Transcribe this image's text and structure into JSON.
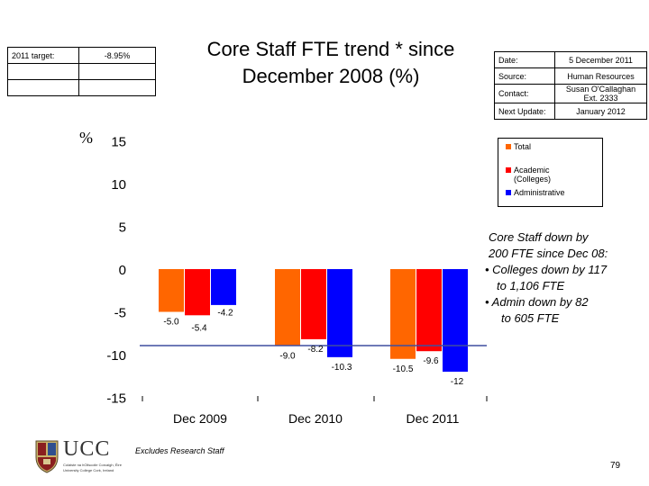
{
  "target": {
    "label": "2011 target:",
    "value": "-8.95%"
  },
  "meta": [
    {
      "label": "Date:",
      "value": "5 December 2011"
    },
    {
      "label": "Source:",
      "value": "Human Resources"
    },
    {
      "label": "Contact:",
      "value": "Susan O'Callaghan Ext. 2333"
    },
    {
      "label": "Next Update:",
      "value": "January 2012"
    }
  ],
  "colors": {
    "total": "#ff6600",
    "academic": "#ff0000",
    "administrative": "#0000ff",
    "target_line": "#3f4f9f"
  },
  "chart_data": {
    "type": "bar",
    "title": "Core Staff FTE trend * since December 2008 (%)",
    "ylabel": "%",
    "ylim": [
      -15,
      15
    ],
    "yticks": [
      -15,
      -10,
      -5,
      0,
      5,
      10,
      15
    ],
    "categories": [
      "Dec 2009",
      "Dec 2010",
      "Dec 2011"
    ],
    "series": [
      {
        "name": "Total",
        "values": [
          -5.0,
          -9.0,
          -10.5
        ],
        "labels": [
          "-5.0",
          "-9.0",
          "-10.5"
        ]
      },
      {
        "name": "Academic (Colleges)",
        "values": [
          -5.4,
          -8.2,
          -9.6
        ],
        "labels": [
          "-5.4",
          "-8.2",
          "-9.6"
        ]
      },
      {
        "name": "Administrative",
        "values": [
          -4.2,
          -10.3,
          -12
        ],
        "labels": [
          "-4.2",
          "-10.3",
          "-12"
        ]
      }
    ],
    "target_value": -8.95,
    "grid": false,
    "legend_position": "right"
  },
  "annotation": [
    "Core Staff down by",
    "200 FTE since Dec 08:",
    "• Colleges down by 117",
    "to 1,106 FTE",
    "• Admin down by 82",
    "to 605 FTE"
  ],
  "footnote": "Excludes Research Staff",
  "page_number": "79",
  "logo": {
    "name": "UCC",
    "sub1": "Coláiste na hOllscoile Corcaigh, Éire",
    "sub2": "University College Cork, Ireland"
  }
}
